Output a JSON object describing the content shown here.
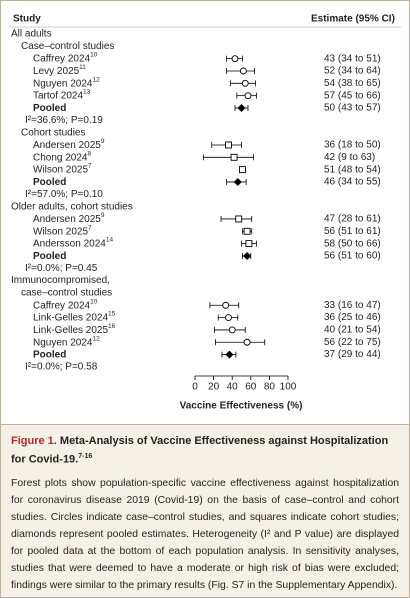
{
  "chart_data": {
    "type": "forest",
    "study_header": "Study",
    "estimate_header": "Estimate (95% CI)",
    "x_label": "Vaccine Effectiveness (%)",
    "xlim": [
      0,
      100
    ],
    "xticks": [
      0,
      20,
      40,
      60,
      80,
      100
    ],
    "color": "#000000",
    "groups": [
      {
        "title": "All adults",
        "subgroups": [
          {
            "title": "Case–control studies",
            "marker": "circle",
            "studies": [
              {
                "name": "Caffrey 2024",
                "ref": "10",
                "estimate": 43,
                "low": 34,
                "high": 51,
                "label": "43 (34 to 51)"
              },
              {
                "name": "Levy 2025",
                "ref": "11",
                "estimate": 52,
                "low": 34,
                "high": 64,
                "label": "52 (34 to 64)"
              },
              {
                "name": "Nguyen 2024",
                "ref": "12",
                "estimate": 54,
                "low": 38,
                "high": 65,
                "label": "54 (38 to 65)"
              },
              {
                "name": "Tartof 2024",
                "ref": "13",
                "estimate": 57,
                "low": 45,
                "high": 66,
                "label": "57 (45 to 66)"
              }
            ],
            "pooled": {
              "name": "Pooled",
              "estimate": 50,
              "low": 43,
              "high": 57,
              "label": "50 (43 to 57)"
            },
            "heterogeneity": "I²=36.6%; P=0.19"
          },
          {
            "title": "Cohort studies",
            "marker": "square",
            "studies": [
              {
                "name": "Andersen 2025",
                "ref": "9",
                "estimate": 36,
                "low": 18,
                "high": 50,
                "label": "36 (18 to 50)"
              },
              {
                "name": "Chong 2024",
                "ref": "8",
                "estimate": 42,
                "low": 9,
                "high": 63,
                "label": "42 (9 to 63)"
              },
              {
                "name": "Wilson 2025",
                "ref": "7",
                "estimate": 51,
                "low": 48,
                "high": 54,
                "label": "51 (48 to 54)"
              }
            ],
            "pooled": {
              "name": "Pooled",
              "estimate": 46,
              "low": 34,
              "high": 55,
              "label": "46 (34 to 55)"
            },
            "heterogeneity": "I²=57.0%; P=0.10"
          }
        ]
      },
      {
        "title": "Older adults, cohort studies",
        "subgroups": [
          {
            "marker": "square",
            "studies": [
              {
                "name": "Andersen 2025",
                "ref": "9",
                "estimate": 47,
                "low": 28,
                "high": 61,
                "label": "47 (28 to 61)"
              },
              {
                "name": "Wilson 2025",
                "ref": "7",
                "estimate": 56,
                "low": 51,
                "high": 61,
                "label": "56 (51 to 61)"
              },
              {
                "name": "Andersson 2024",
                "ref": "14",
                "estimate": 58,
                "low": 50,
                "high": 66,
                "label": "58 (50 to 66)"
              }
            ],
            "pooled": {
              "name": "Pooled",
              "estimate": 56,
              "low": 51,
              "high": 60,
              "label": "56 (51 to 60)"
            },
            "heterogeneity": "I²=0.0%; P=0.45"
          }
        ]
      },
      {
        "title": "Immunocompromised,",
        "subgroups": [
          {
            "title": "case–control studies",
            "marker": "circle",
            "studies": [
              {
                "name": "Caffrey 2024",
                "ref": "10",
                "estimate": 33,
                "low": 16,
                "high": 47,
                "label": "33 (16 to 47)"
              },
              {
                "name": "Link-Gelles 2024",
                "ref": "15",
                "estimate": 36,
                "low": 25,
                "high": 46,
                "label": "36 (25 to 46)"
              },
              {
                "name": "Link-Gelles 2025",
                "ref": "16",
                "estimate": 40,
                "low": 21,
                "high": 54,
                "label": "40 (21 to 54)"
              },
              {
                "name": "Nguyen 2024",
                "ref": "12",
                "estimate": 56,
                "low": 22,
                "high": 75,
                "label": "56 (22 to 75)"
              }
            ],
            "pooled": {
              "name": "Pooled",
              "estimate": 37,
              "low": 29,
              "high": 44,
              "label": "37 (29 to 44)"
            },
            "heterogeneity": "I²=0.0%; P=0.58"
          }
        ]
      }
    ]
  },
  "caption": {
    "label": "Figure 1.",
    "title": "Meta-Analysis of Vaccine Effectiveness against Hospitalization for Covid-19.",
    "ref": "7-16",
    "text": "Forest plots show population-specific vaccine effectiveness against hospitalization for coronavirus disease 2019 (Covid-19) on the basis of case–control and cohort studies. Circles indicate case–control studies, and squares indicate cohort studies; diamonds represent pooled estimates. Heterogeneity (I² and P value) are displayed for pooled data at the bottom of each population analysis. In sensitivity analyses, studies that were deemed to have a moderate or high risk of bias were excluded; findings were similar to the primary results (Fig. S7 in the Supplementary Appendix)."
  }
}
